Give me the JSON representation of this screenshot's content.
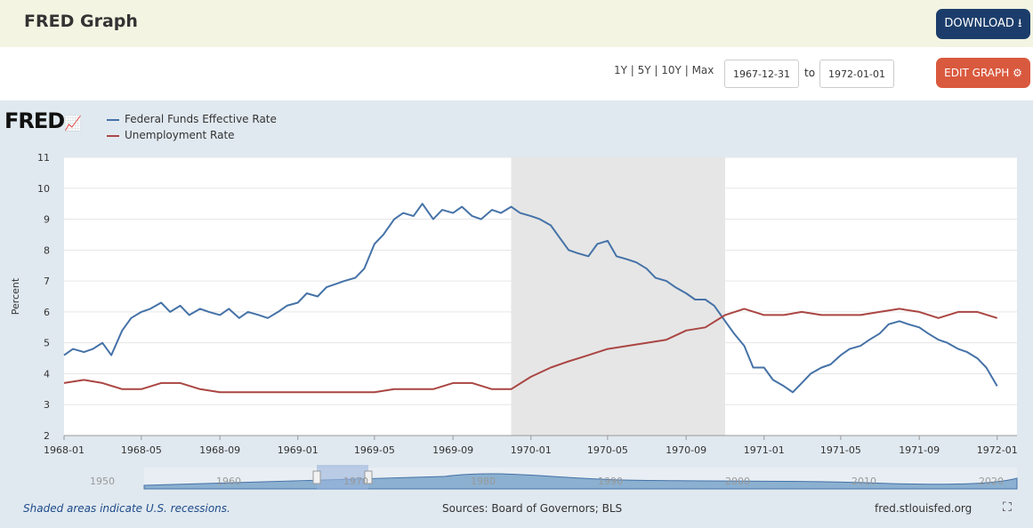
{
  "header": {
    "title": "FRED Graph",
    "download_label": "DOWNLOAD"
  },
  "controls": {
    "ranges": [
      "1Y",
      "5Y",
      "10Y",
      "Max"
    ],
    "start_date": "1967-12-31",
    "to_label": "to",
    "end_date": "1972-01-01",
    "edit_label": "EDIT GRAPH"
  },
  "legend": {
    "brand": "FRED"
  },
  "footer": {
    "note": "Shaded areas indicate U.S. recessions.",
    "sources": "Sources: Board of Governors; BLS",
    "site": "fred.stlouisfed.org"
  },
  "navigator": {
    "years": [
      "1950",
      "1960",
      "1970",
      "1980",
      "1990",
      "2000",
      "2010",
      "2020"
    ]
  },
  "colors": {
    "fedfunds": "#4572a7",
    "unrate": "#aa4643",
    "recession": "#e6e6e6",
    "header_bg": "#f4f4e3",
    "download": "#1c3d6b",
    "edit": "#d9593e"
  },
  "chart_data": {
    "type": "line",
    "title": "",
    "xlabel": "",
    "ylabel": "Percent",
    "ylim": [
      2,
      11
    ],
    "yticks": [
      2,
      3,
      4,
      5,
      6,
      7,
      8,
      9,
      10,
      11
    ],
    "xticks": [
      "1968-01",
      "1968-05",
      "1968-09",
      "1969-01",
      "1969-05",
      "1969-09",
      "1970-01",
      "1970-05",
      "1970-09",
      "1971-01",
      "1971-05",
      "1971-09",
      "1972-01"
    ],
    "recessions": [
      [
        "1969-12",
        "1970-11"
      ]
    ],
    "series": [
      {
        "name": "Federal Funds Effective Rate",
        "x": [
          "1968-01",
          "1968-01-15",
          "1968-02",
          "1968-02-15",
          "1968-03",
          "1968-03-15",
          "1968-04",
          "1968-04-15",
          "1968-05",
          "1968-05-15",
          "1968-06",
          "1968-06-15",
          "1968-07",
          "1968-07-15",
          "1968-08",
          "1968-08-15",
          "1968-09",
          "1968-09-15",
          "1968-10",
          "1968-10-15",
          "1968-11",
          "1968-11-15",
          "1968-12",
          "1968-12-15",
          "1969-01",
          "1969-01-15",
          "1969-02",
          "1969-02-15",
          "1969-03",
          "1969-03-15",
          "1969-04",
          "1969-04-15",
          "1969-05",
          "1969-05-15",
          "1969-06",
          "1969-06-15",
          "1969-07",
          "1969-07-15",
          "1969-08",
          "1969-08-15",
          "1969-09",
          "1969-09-15",
          "1969-10",
          "1969-10-15",
          "1969-11",
          "1969-11-15",
          "1969-12",
          "1969-12-15",
          "1970-01",
          "1970-01-15",
          "1970-02",
          "1970-02-15",
          "1970-03",
          "1970-03-15",
          "1970-04",
          "1970-04-15",
          "1970-05",
          "1970-05-15",
          "1970-06",
          "1970-06-15",
          "1970-07",
          "1970-07-15",
          "1970-08",
          "1970-08-15",
          "1970-09",
          "1970-09-15",
          "1970-10",
          "1970-10-15",
          "1970-11",
          "1970-11-15",
          "1970-12",
          "1970-12-15",
          "1971-01",
          "1971-01-15",
          "1971-02",
          "1971-02-15",
          "1971-03",
          "1971-03-15",
          "1971-04",
          "1971-04-15",
          "1971-05",
          "1971-05-15",
          "1971-06",
          "1971-06-15",
          "1971-07",
          "1971-07-15",
          "1971-08",
          "1971-08-15",
          "1971-09",
          "1971-09-15",
          "1971-10",
          "1971-10-15",
          "1971-11",
          "1971-11-15",
          "1971-12",
          "1971-12-15",
          "1972-01"
        ],
        "values": [
          4.6,
          4.8,
          4.7,
          4.8,
          5.0,
          4.6,
          5.4,
          5.8,
          6.0,
          6.1,
          6.3,
          6.0,
          6.2,
          5.9,
          6.1,
          6.0,
          5.9,
          6.1,
          5.8,
          6.0,
          5.9,
          5.8,
          6.0,
          6.2,
          6.3,
          6.6,
          6.5,
          6.8,
          6.9,
          7.0,
          7.1,
          7.4,
          8.2,
          8.5,
          9.0,
          9.2,
          9.1,
          9.5,
          9.0,
          9.3,
          9.2,
          9.4,
          9.1,
          9.0,
          9.3,
          9.2,
          9.4,
          9.2,
          9.1,
          9.0,
          8.8,
          8.4,
          8.0,
          7.9,
          7.8,
          8.2,
          8.3,
          7.8,
          7.7,
          7.6,
          7.4,
          7.1,
          7.0,
          6.8,
          6.6,
          6.4,
          6.4,
          6.2,
          5.7,
          5.3,
          4.9,
          4.2,
          4.2,
          3.8,
          3.6,
          3.4,
          3.7,
          4.0,
          4.2,
          4.3,
          4.6,
          4.8,
          4.9,
          5.1,
          5.3,
          5.6,
          5.7,
          5.6,
          5.5,
          5.3,
          5.1,
          5.0,
          4.8,
          4.7,
          4.5,
          4.2,
          3.6
        ]
      },
      {
        "name": "Unemployment Rate",
        "x": [
          "1968-01",
          "1968-02",
          "1968-03",
          "1968-04",
          "1968-05",
          "1968-06",
          "1968-07",
          "1968-08",
          "1968-09",
          "1968-10",
          "1968-11",
          "1968-12",
          "1969-01",
          "1969-02",
          "1969-03",
          "1969-04",
          "1969-05",
          "1969-06",
          "1969-07",
          "1969-08",
          "1969-09",
          "1969-10",
          "1969-11",
          "1969-12",
          "1970-01",
          "1970-02",
          "1970-03",
          "1970-04",
          "1970-05",
          "1970-06",
          "1970-07",
          "1970-08",
          "1970-09",
          "1970-10",
          "1970-11",
          "1970-12",
          "1971-01",
          "1971-02",
          "1971-03",
          "1971-04",
          "1971-05",
          "1971-06",
          "1971-07",
          "1971-08",
          "1971-09",
          "1971-10",
          "1971-11",
          "1971-12",
          "1972-01"
        ],
        "values": [
          3.7,
          3.8,
          3.7,
          3.5,
          3.5,
          3.7,
          3.7,
          3.5,
          3.4,
          3.4,
          3.4,
          3.4,
          3.4,
          3.4,
          3.4,
          3.4,
          3.4,
          3.5,
          3.5,
          3.5,
          3.7,
          3.7,
          3.5,
          3.5,
          3.9,
          4.2,
          4.4,
          4.6,
          4.8,
          4.9,
          5.0,
          5.1,
          5.4,
          5.5,
          5.9,
          6.1,
          5.9,
          5.9,
          6.0,
          5.9,
          5.9,
          5.9,
          6.0,
          6.1,
          6.0,
          5.8,
          6.0,
          6.0,
          5.8
        ]
      }
    ]
  }
}
